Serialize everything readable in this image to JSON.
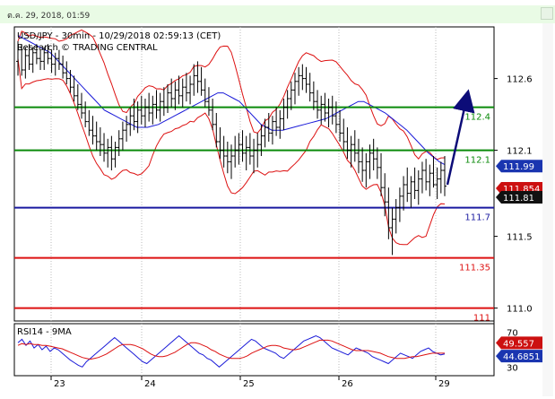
{
  "topbar": {
    "datetime": "ต.ค. 29, 2018, 01:59"
  },
  "chart_data": {
    "type": "candlestick",
    "title": "USD/JPY - 30min - 10/29/2018 02:59:13 (CET)",
    "subtitle": "Research © TRADING CENTRAL",
    "x_ticks": [
      "23",
      "24",
      "25",
      "26",
      "29"
    ],
    "y_ticks": [
      "112.6",
      "112.1",
      "111.5",
      "111.0"
    ],
    "ylim": [
      110.91,
      112.96
    ],
    "levels": [
      {
        "label": "112.4",
        "value": 112.4,
        "color": "#0a8a0a"
      },
      {
        "label": "112.1",
        "value": 112.1,
        "color": "#0a8a0a"
      },
      {
        "label": "111.7",
        "value": 111.7,
        "color": "#1a1aa0"
      },
      {
        "label": "111.35",
        "value": 111.35,
        "color": "#dd1111"
      },
      {
        "label": "111",
        "value": 111.0,
        "color": "#dd1111"
      }
    ],
    "price_boxes": [
      {
        "label": "111.99",
        "value": 111.99,
        "color": "#1a35b0"
      },
      {
        "label": "111.854",
        "value": 111.854,
        "color": "#cc1010"
      },
      {
        "label": "111.81",
        "value": 111.81,
        "color": "#111111"
      }
    ],
    "projection": {
      "from": [
        193,
        111.86
      ],
      "to": [
        200,
        112.4
      ]
    },
    "series": [
      {
        "type": "candles",
        "values": [
          [
            112.72,
            112.86,
            112.62,
            112.8
          ],
          [
            112.8,
            112.84,
            112.62,
            112.66
          ],
          [
            112.66,
            112.82,
            112.6,
            112.76
          ],
          [
            112.76,
            112.84,
            112.66,
            112.7
          ],
          [
            112.7,
            112.82,
            112.64,
            112.78
          ],
          [
            112.78,
            112.84,
            112.7,
            112.74
          ],
          [
            112.74,
            112.8,
            112.66,
            112.72
          ],
          [
            112.72,
            112.82,
            112.66,
            112.78
          ],
          [
            112.78,
            112.84,
            112.7,
            112.74
          ],
          [
            112.74,
            112.8,
            112.64,
            112.7
          ],
          [
            112.7,
            112.78,
            112.62,
            112.74
          ],
          [
            112.74,
            112.8,
            112.66,
            112.7
          ],
          [
            112.7,
            112.76,
            112.6,
            112.64
          ],
          [
            112.64,
            112.72,
            112.56,
            112.6
          ],
          [
            112.6,
            112.66,
            112.5,
            112.54
          ],
          [
            112.54,
            112.62,
            112.44,
            112.48
          ],
          [
            112.48,
            112.56,
            112.38,
            112.42
          ],
          [
            112.42,
            112.5,
            112.32,
            112.36
          ],
          [
            112.36,
            112.44,
            112.26,
            112.3
          ],
          [
            112.3,
            112.38,
            112.2,
            112.24
          ],
          [
            112.24,
            112.34,
            112.14,
            112.2
          ],
          [
            112.2,
            112.3,
            112.1,
            112.16
          ],
          [
            112.16,
            112.26,
            112.06,
            112.14
          ],
          [
            112.14,
            112.22,
            112.02,
            112.08
          ],
          [
            112.08,
            112.18,
            111.98,
            112.12
          ],
          [
            112.12,
            112.2,
            111.96,
            112.04
          ],
          [
            112.04,
            112.16,
            111.98,
            112.12
          ],
          [
            112.12,
            112.24,
            112.06,
            112.18
          ],
          [
            112.18,
            112.3,
            112.1,
            112.24
          ],
          [
            112.24,
            112.34,
            112.16,
            112.28
          ],
          [
            112.28,
            112.4,
            112.2,
            112.34
          ],
          [
            112.34,
            112.46,
            112.24,
            112.3
          ],
          [
            112.3,
            112.44,
            112.22,
            112.38
          ],
          [
            112.38,
            112.48,
            112.28,
            112.34
          ],
          [
            112.34,
            112.46,
            112.26,
            112.4
          ],
          [
            112.4,
            112.5,
            112.3,
            112.36
          ],
          [
            112.36,
            112.48,
            112.28,
            112.42
          ],
          [
            112.42,
            112.52,
            112.32,
            112.38
          ],
          [
            112.38,
            112.5,
            112.3,
            112.44
          ],
          [
            112.44,
            112.54,
            112.34,
            112.4
          ],
          [
            112.4,
            112.56,
            112.36,
            112.5
          ],
          [
            112.5,
            112.6,
            112.4,
            112.46
          ],
          [
            112.46,
            112.58,
            112.38,
            112.52
          ],
          [
            112.52,
            112.62,
            112.42,
            112.48
          ],
          [
            112.48,
            112.6,
            112.4,
            112.54
          ],
          [
            112.54,
            112.64,
            112.44,
            112.5
          ],
          [
            112.5,
            112.62,
            112.42,
            112.56
          ],
          [
            112.56,
            112.7,
            112.48,
            112.62
          ],
          [
            112.62,
            112.72,
            112.5,
            112.58
          ],
          [
            112.58,
            112.68,
            112.48,
            112.52
          ],
          [
            112.52,
            112.6,
            112.4,
            112.44
          ],
          [
            112.44,
            112.54,
            112.34,
            112.38
          ],
          [
            112.38,
            112.46,
            112.24,
            112.28
          ],
          [
            112.28,
            112.36,
            112.12,
            112.16
          ],
          [
            112.16,
            112.26,
            112.04,
            112.1
          ],
          [
            112.1,
            112.2,
            111.98,
            112.06
          ],
          [
            112.06,
            112.16,
            111.94,
            112.02
          ],
          [
            112.02,
            112.14,
            111.9,
            112.06
          ],
          [
            112.06,
            112.2,
            111.98,
            112.1
          ],
          [
            112.1,
            112.22,
            112.0,
            112.14
          ],
          [
            112.14,
            112.24,
            112.02,
            112.08
          ],
          [
            112.08,
            112.2,
            111.96,
            112.12
          ],
          [
            112.12,
            112.22,
            112.0,
            112.06
          ],
          [
            112.06,
            112.18,
            111.94,
            112.1
          ],
          [
            112.1,
            112.22,
            111.98,
            112.14
          ],
          [
            112.14,
            112.28,
            112.06,
            112.2
          ],
          [
            112.2,
            112.32,
            112.12,
            112.26
          ],
          [
            112.26,
            112.36,
            112.16,
            112.22
          ],
          [
            112.22,
            112.34,
            112.14,
            112.3
          ],
          [
            112.3,
            112.4,
            112.2,
            112.26
          ],
          [
            112.26,
            112.38,
            112.18,
            112.32
          ],
          [
            112.32,
            112.46,
            112.24,
            112.4
          ],
          [
            112.4,
            112.52,
            112.32,
            112.46
          ],
          [
            112.46,
            112.58,
            112.38,
            112.52
          ],
          [
            112.52,
            112.64,
            112.42,
            112.58
          ],
          [
            112.58,
            112.68,
            112.48,
            112.62
          ],
          [
            112.62,
            112.7,
            112.52,
            112.6
          ],
          [
            112.6,
            112.68,
            112.5,
            112.56
          ],
          [
            112.56,
            112.64,
            112.44,
            112.5
          ],
          [
            112.5,
            112.58,
            112.38,
            112.44
          ],
          [
            112.44,
            112.52,
            112.32,
            112.38
          ],
          [
            112.38,
            112.48,
            112.28,
            112.42
          ],
          [
            112.42,
            112.5,
            112.3,
            112.36
          ],
          [
            112.36,
            112.46,
            112.26,
            112.4
          ],
          [
            112.4,
            112.48,
            112.28,
            112.34
          ],
          [
            112.34,
            112.44,
            112.22,
            112.28
          ],
          [
            112.28,
            112.38,
            112.16,
            112.22
          ],
          [
            112.22,
            112.32,
            112.1,
            112.16
          ],
          [
            112.16,
            112.26,
            112.04,
            112.1
          ],
          [
            112.1,
            112.2,
            111.98,
            112.14
          ],
          [
            112.14,
            112.24,
            112.02,
            112.08
          ],
          [
            112.08,
            112.18,
            111.94,
            112.02
          ],
          [
            112.02,
            112.12,
            111.88,
            111.96
          ],
          [
            111.96,
            112.08,
            111.84,
            112.02
          ],
          [
            112.02,
            112.14,
            111.9,
            112.08
          ],
          [
            112.08,
            112.18,
            111.96,
            112.04
          ],
          [
            112.04,
            112.12,
            111.9,
            111.98
          ],
          [
            111.98,
            112.08,
            111.78,
            111.84
          ],
          [
            111.84,
            111.94,
            111.64,
            111.74
          ],
          [
            111.74,
            111.84,
            111.48,
            111.56
          ],
          [
            111.56,
            111.7,
            111.37,
            111.62
          ],
          [
            111.62,
            111.76,
            111.52,
            111.7
          ],
          [
            111.7,
            111.84,
            111.6,
            111.78
          ],
          [
            111.78,
            111.92,
            111.68,
            111.86
          ],
          [
            111.86,
            111.98,
            111.74,
            111.8
          ],
          [
            111.8,
            111.92,
            111.7,
            111.88
          ],
          [
            111.88,
            111.98,
            111.76,
            111.82
          ],
          [
            111.82,
            111.96,
            111.72,
            111.9
          ],
          [
            111.9,
            112.02,
            111.8,
            111.96
          ],
          [
            111.96,
            112.04,
            111.82,
            111.88
          ],
          [
            111.88,
            112.0,
            111.78,
            111.94
          ],
          [
            111.94,
            112.06,
            111.84,
            111.86
          ],
          [
            111.86,
            111.98,
            111.76,
            111.9
          ],
          [
            111.9,
            112.02,
            111.8,
            111.96
          ],
          [
            111.96,
            112.06,
            111.78,
            111.85
          ]
        ]
      },
      {
        "type": "rsi",
        "values": [
          58,
          62,
          55,
          60,
          52,
          56,
          50,
          54,
          48,
          52,
          50,
          46,
          42,
          38,
          35,
          32,
          30,
          36,
          40,
          44,
          48,
          52,
          56,
          60,
          64,
          60,
          56,
          52,
          48,
          44,
          40,
          36,
          34,
          38,
          42,
          46,
          50,
          54,
          58,
          62,
          66,
          62,
          58,
          54,
          50,
          46,
          44,
          40,
          38,
          34,
          30,
          34,
          38,
          42,
          46,
          50,
          54,
          58,
          62,
          60,
          56,
          52,
          50,
          48,
          46,
          42,
          40,
          44,
          48,
          52,
          56,
          60,
          62,
          64,
          66,
          64,
          60,
          56,
          52,
          50,
          48,
          46,
          44,
          48,
          52,
          50,
          48,
          46,
          42,
          40,
          38,
          36,
          34,
          38,
          42,
          46,
          44,
          42,
          40,
          44,
          48,
          50,
          52,
          48,
          46,
          44,
          45
        ]
      },
      {
        "type": "rsi_ma9",
        "values": [
          55,
          57,
          56,
          57,
          56,
          56,
          55,
          55,
          54,
          53,
          52,
          51,
          49,
          47,
          45,
          43,
          41,
          40,
          39,
          40,
          41,
          43,
          45,
          48,
          51,
          54,
          56,
          56,
          56,
          55,
          53,
          51,
          48,
          45,
          43,
          42,
          42,
          43,
          45,
          47,
          50,
          53,
          56,
          58,
          58,
          57,
          55,
          53,
          50,
          48,
          45,
          43,
          41,
          40,
          40,
          40,
          41,
          43,
          46,
          48,
          50,
          52,
          54,
          55,
          55,
          54,
          52,
          51,
          50,
          50,
          51,
          53,
          55,
          57,
          59,
          61,
          61,
          61,
          60,
          58,
          56,
          54,
          52,
          50,
          49,
          49,
          49,
          49,
          48,
          47,
          46,
          44,
          42,
          41,
          40,
          40,
          40,
          41,
          42,
          42,
          43,
          44,
          45,
          46,
          46,
          46,
          46
        ]
      },
      {
        "type": "ma",
        "values": [
          112.9,
          112.88,
          112.86,
          112.84,
          112.82,
          112.8,
          112.78,
          112.74,
          112.7,
          112.66,
          112.62,
          112.58,
          112.54,
          112.5,
          112.46,
          112.42,
          112.38,
          112.36,
          112.34,
          112.32,
          112.3,
          112.28,
          112.26,
          112.26,
          112.26,
          112.27,
          112.28,
          112.3,
          112.32,
          112.34,
          112.36,
          112.38,
          112.4,
          112.42,
          112.44,
          112.46,
          112.48,
          112.5,
          112.5,
          112.48,
          112.46,
          112.44,
          112.4,
          112.36,
          112.32,
          112.28,
          112.26,
          112.24,
          112.24,
          112.24,
          112.25,
          112.26,
          112.27,
          112.28,
          112.29,
          112.3,
          112.31,
          112.32,
          112.34,
          112.36,
          112.38,
          112.4,
          112.42,
          112.44,
          112.44,
          112.42,
          112.4,
          112.38,
          112.36,
          112.33,
          112.3,
          112.27,
          112.24,
          112.2,
          112.16,
          112.12,
          112.08,
          112.05,
          112.02,
          112.0
        ]
      }
    ],
    "rsi_panel": {
      "title": "RSI14 - 9MA",
      "ylim": [
        20,
        80
      ],
      "y_ticks": [
        "70",
        "30"
      ],
      "price_boxes": [
        {
          "label": "49.557",
          "value": 49.557,
          "color": "#cc1010"
        },
        {
          "label": "44.6851",
          "value": 44.6851,
          "color": "#1a35b0"
        }
      ]
    }
  }
}
